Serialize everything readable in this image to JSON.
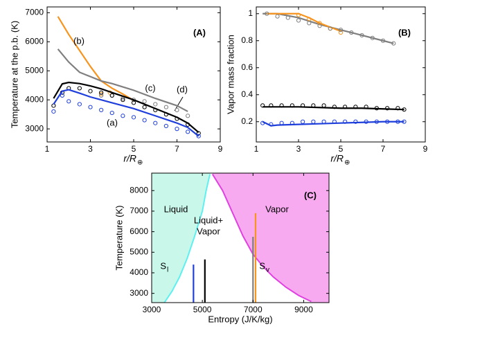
{
  "chart_data": [
    {
      "type": "line",
      "ylabel": "Temperature at the p.b. (K)",
      "xlabel": {
        "text": "r/R",
        "sub": "⊕"
      },
      "xlim": [
        1,
        9
      ],
      "xticks": [
        1,
        3,
        5,
        7,
        9
      ],
      "ylim": [
        2550,
        7200
      ],
      "yticks": [
        3000,
        4000,
        5000,
        6000,
        7000
      ],
      "series": [
        {
          "color": "#f7941d",
          "style": "line",
          "x": [
            1.5,
            2,
            2.5,
            3,
            3.5,
            4,
            4.5,
            5
          ],
          "values": [
            6870,
            6250,
            5700,
            5150,
            4650,
            4400,
            4200,
            3980
          ]
        },
        {
          "color": "#f7941d",
          "style": "circle",
          "x": [
            3.5,
            3.9
          ],
          "values": [
            4200,
            4250
          ]
        },
        {
          "color": "#7f7f7f",
          "style": "line",
          "x": [
            1.5,
            2,
            2.5,
            3,
            3.5,
            4,
            5,
            6,
            7,
            7.5
          ],
          "values": [
            5750,
            5300,
            4950,
            4800,
            4650,
            4560,
            4330,
            4050,
            3800,
            3600
          ]
        },
        {
          "color": "#7f7f7f",
          "style": "circle",
          "x": [
            3.5,
            4,
            4.5,
            5,
            5.5,
            6,
            6.5,
            7,
            7.5
          ],
          "values": [
            4150,
            4150,
            4050,
            4000,
            3950,
            3850,
            3750,
            3650,
            3450
          ]
        },
        {
          "color": "#000000",
          "style": "line",
          "x": [
            1.3,
            1.7,
            2,
            2.5,
            3,
            3.5,
            4,
            5,
            6,
            7,
            7.5,
            8
          ],
          "values": [
            4050,
            4550,
            4600,
            4560,
            4480,
            4380,
            4250,
            4000,
            3700,
            3400,
            3200,
            2880
          ]
        },
        {
          "color": "#000000",
          "style": "circle",
          "x": [
            1.3,
            1.7,
            2,
            2.5,
            3,
            3.5,
            4,
            4.5,
            5,
            5.5,
            6,
            6.5,
            7,
            7.5,
            8
          ],
          "values": [
            3800,
            4250,
            4400,
            4400,
            4300,
            4250,
            4150,
            4000,
            3900,
            3750,
            3650,
            3500,
            3350,
            3150,
            2850
          ]
        },
        {
          "color": "#1f3fdc",
          "style": "line",
          "x": [
            1.3,
            1.7,
            2,
            2.5,
            3,
            3.5,
            4,
            5,
            6,
            7,
            7.5,
            8
          ],
          "values": [
            3850,
            4300,
            4350,
            4230,
            4100,
            4000,
            3900,
            3700,
            3450,
            3200,
            3050,
            2750
          ]
        },
        {
          "color": "#1f3fdc",
          "style": "circle",
          "x": [
            1.3,
            1.7,
            2,
            2.5,
            3,
            3.5,
            4,
            4.5,
            5,
            5.5,
            6,
            6.5,
            7,
            7.5,
            8
          ],
          "values": [
            3600,
            4150,
            3950,
            3850,
            3750,
            3650,
            3550,
            3450,
            3400,
            3300,
            3200,
            3100,
            3000,
            2900,
            2750
          ]
        }
      ],
      "annotations": [
        {
          "text": "(b)"
        },
        {
          "text": "(c)"
        },
        {
          "text": "(d)"
        },
        {
          "text": "(a)"
        },
        {
          "text": "(A)"
        }
      ]
    },
    {
      "type": "line",
      "ylabel": "Vapor mass fraction",
      "xlabel": {
        "text": "r/R",
        "sub": "⊕"
      },
      "xlim": [
        1,
        9
      ],
      "xticks": [
        1,
        3,
        5,
        7,
        9
      ],
      "ylim": [
        0.05,
        1.05
      ],
      "yticks": [
        0.2,
        0.4,
        0.6,
        0.8,
        1
      ],
      "series": [
        {
          "color": "#7f7f7f",
          "style": "line",
          "x": [
            1.3,
            2,
            3,
            4,
            5,
            6,
            7,
            7.5
          ],
          "values": [
            1.0,
            1.0,
            0.97,
            0.92,
            0.88,
            0.84,
            0.8,
            0.78
          ]
        },
        {
          "color": "#f7941d",
          "style": "line",
          "x": [
            1.5,
            2,
            3,
            3.5,
            4,
            4.5,
            5
          ],
          "values": [
            1.0,
            1.0,
            1.0,
            0.97,
            0.93,
            0.9,
            0.87
          ]
        },
        {
          "color": "#f7941d",
          "style": "circle",
          "x": [
            3,
            3.5,
            4,
            4.5,
            5
          ],
          "values": [
            0.99,
            0.96,
            0.93,
            0.89,
            0.86
          ]
        },
        {
          "color": "#7f7f7f",
          "style": "circle",
          "x": [
            1.5,
            2,
            2.5,
            3,
            3.5,
            4,
            4.5,
            5,
            5.5,
            6,
            6.5,
            7,
            7.5
          ],
          "values": [
            1.0,
            0.98,
            0.97,
            0.95,
            0.93,
            0.91,
            0.89,
            0.88,
            0.86,
            0.84,
            0.82,
            0.8,
            0.78
          ]
        },
        {
          "color": "#000000",
          "style": "line",
          "x": [
            1.3,
            2,
            3,
            4,
            5,
            6,
            7,
            8
          ],
          "values": [
            0.31,
            0.31,
            0.31,
            0.305,
            0.3,
            0.3,
            0.295,
            0.29
          ]
        },
        {
          "color": "#000000",
          "style": "circle",
          "x": [
            1.3,
            1.7,
            2.2,
            2.7,
            3.2,
            3.7,
            4.2,
            4.7,
            5.2,
            5.7,
            6.2,
            6.7,
            7.2,
            7.7,
            8
          ],
          "values": [
            0.32,
            0.32,
            0.32,
            0.32,
            0.32,
            0.32,
            0.32,
            0.31,
            0.31,
            0.31,
            0.31,
            0.3,
            0.3,
            0.3,
            0.29
          ]
        },
        {
          "color": "#1f3fdc",
          "style": "line",
          "x": [
            1.3,
            1.7,
            2,
            3,
            4,
            5,
            6,
            7,
            8
          ],
          "values": [
            0.2,
            0.17,
            0.175,
            0.18,
            0.185,
            0.19,
            0.195,
            0.2,
            0.2
          ]
        },
        {
          "color": "#1f3fdc",
          "style": "circle",
          "x": [
            1.3,
            1.7,
            2.2,
            2.7,
            3.2,
            3.7,
            4.2,
            4.7,
            5.2,
            5.7,
            6.2,
            6.7,
            7.2,
            7.7,
            8
          ],
          "values": [
            0.19,
            0.18,
            0.19,
            0.19,
            0.2,
            0.2,
            0.2,
            0.2,
            0.2,
            0.2,
            0.2,
            0.2,
            0.2,
            0.2,
            0.2
          ]
        }
      ],
      "annotations": [
        {
          "text": "(B)"
        }
      ]
    },
    {
      "type": "phase",
      "ylabel": "Temperature (K)",
      "xlabel": {
        "text": "Entropy (J/K/kg)"
      },
      "xlim": [
        3000,
        10000
      ],
      "xticks": [
        3000,
        5000,
        7000,
        9000
      ],
      "ylim": [
        2550,
        8850
      ],
      "yticks": [
        3000,
        4000,
        5000,
        6000,
        7000,
        8000
      ],
      "series": [
        {
          "color": "#5ef0f0",
          "fill": "#c9f7ea",
          "side": "left",
          "x": [
            3500,
            3800,
            4100,
            4400,
            4700,
            5000,
            5150,
            5300
          ],
          "values": [
            2550,
            3100,
            3800,
            4700,
            5800,
            7000,
            8000,
            8800
          ]
        },
        {
          "color": "#e040e0",
          "fill": "#f7aaf0",
          "side": "right",
          "x": [
            5400,
            5800,
            6200,
            6600,
            7000,
            7400,
            7800,
            8300,
            8800,
            9300
          ],
          "values": [
            8800,
            8000,
            6900,
            5800,
            4900,
            4300,
            3800,
            3300,
            2900,
            2600
          ]
        }
      ],
      "vlines": [
        {
          "x": 4650,
          "top": 4400,
          "color": "#1f3fdc"
        },
        {
          "x": 5100,
          "top": 4650,
          "color": "#000000"
        },
        {
          "x": 7000,
          "top": 5750,
          "color": "#7f7f7f"
        },
        {
          "x": 7100,
          "top": 6900,
          "color": "#f7941d"
        }
      ],
      "annotations": [
        {
          "text": "Liquid"
        },
        {
          "text": "Liquid+"
        },
        {
          "text": "Vapor"
        },
        {
          "text": "Vapor"
        },
        {
          "text": "S",
          "sub": "l"
        },
        {
          "text": "S",
          "sub": "v"
        },
        {
          "text": "(C)"
        }
      ]
    }
  ]
}
